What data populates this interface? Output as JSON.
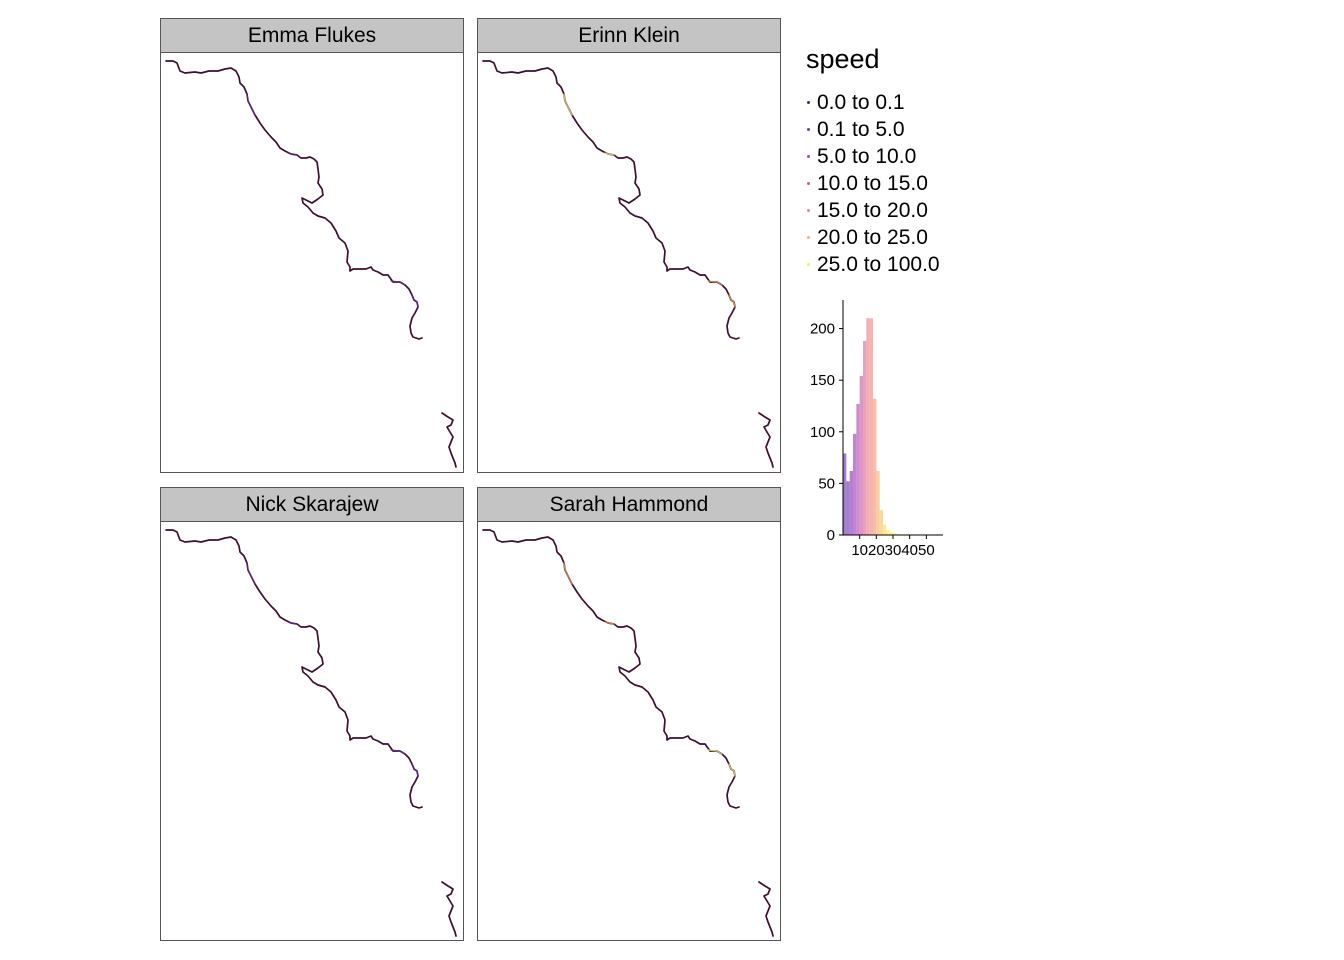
{
  "panels": [
    {
      "title": "Emma Flukes",
      "accent": [
        "#5c2d91"
      ]
    },
    {
      "title": "Erinn Klein",
      "accent": [
        "#f0f075",
        "#e7a04c"
      ]
    },
    {
      "title": "Nick Skarajew",
      "accent": [
        "#5c2d91"
      ]
    },
    {
      "title": "Sarah Hammond",
      "accent": [
        "#e7a04c",
        "#f0f075"
      ]
    }
  ],
  "legend": {
    "title": "speed",
    "items": [
      {
        "label": "0.0 to 0.1",
        "color": "#3b2a7a"
      },
      {
        "label": "0.1 to 5.0",
        "color": "#6a3fa0"
      },
      {
        "label": "5.0 to 10.0",
        "color": "#9b4fb3"
      },
      {
        "label": "10.0 to 15.0",
        "color": "#c45fa0"
      },
      {
        "label": "15.0 to 20.0",
        "color": "#e8819a"
      },
      {
        "label": "20.0 to 25.0",
        "color": "#f5b07a"
      },
      {
        "label": "25.0 to 100.0",
        "color": "#f6ee6a"
      }
    ]
  },
  "chart_data": {
    "type": "bar",
    "title": "",
    "xlabel": "",
    "ylabel": "",
    "xlim": [
      0,
      60
    ],
    "ylim": [
      0,
      210
    ],
    "xticks": [
      10,
      20,
      30,
      40,
      50
    ],
    "yticks": [
      0,
      50,
      100,
      150,
      200
    ],
    "bin_width": 2,
    "bins": [
      {
        "x0": 0,
        "x1": 2,
        "count": 79,
        "color": "#8a5cc0"
      },
      {
        "x0": 2,
        "x1": 4,
        "count": 52,
        "color": "#8a5cc0"
      },
      {
        "x0": 4,
        "x1": 6,
        "count": 62,
        "color": "#9f5fc6"
      },
      {
        "x0": 6,
        "x1": 8,
        "count": 98,
        "color": "#b466c8"
      },
      {
        "x0": 8,
        "x1": 10,
        "count": 127,
        "color": "#c26ec4"
      },
      {
        "x0": 10,
        "x1": 12,
        "count": 154,
        "color": "#d57ab6"
      },
      {
        "x0": 12,
        "x1": 14,
        "count": 188,
        "color": "#e58aa8"
      },
      {
        "x0": 14,
        "x1": 16,
        "count": 210,
        "color": "#ee9aa0"
      },
      {
        "x0": 16,
        "x1": 18,
        "count": 210,
        "color": "#f2a39a"
      },
      {
        "x0": 18,
        "x1": 20,
        "count": 132,
        "color": "#f5ad92"
      },
      {
        "x0": 20,
        "x1": 22,
        "count": 62,
        "color": "#f7c089"
      },
      {
        "x0": 22,
        "x1": 24,
        "count": 24,
        "color": "#f7d07e"
      },
      {
        "x0": 24,
        "x1": 26,
        "count": 10,
        "color": "#f8e47a"
      },
      {
        "x0": 26,
        "x1": 28,
        "count": 5,
        "color": "#f9ef76"
      },
      {
        "x0": 28,
        "x1": 30,
        "count": 3,
        "color": "#f9f177"
      },
      {
        "x0": 30,
        "x1": 32,
        "count": 2,
        "color": "#f9f177"
      },
      {
        "x0": 32,
        "x1": 34,
        "count": 1,
        "color": "#f9f177"
      },
      {
        "x0": 38,
        "x1": 40,
        "count": 1,
        "color": "#f9f177"
      },
      {
        "x0": 56,
        "x1": 58,
        "count": 1,
        "color": "#f9f177"
      }
    ]
  }
}
